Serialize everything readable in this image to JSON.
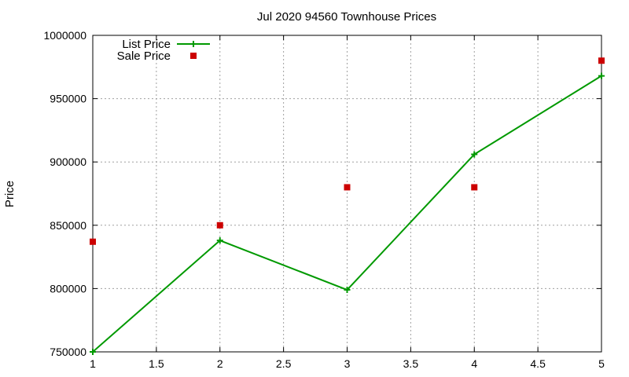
{
  "chart_data": {
    "type": "line",
    "title": "Jul 2020 94560 Townhouse Prices",
    "xlabel": "",
    "ylabel": "Price",
    "xlim": [
      1,
      5
    ],
    "ylim": [
      750000,
      1000000
    ],
    "xticks": [
      1,
      1.5,
      2,
      2.5,
      3,
      3.5,
      4,
      4.5,
      5
    ],
    "yticks": [
      750000,
      800000,
      850000,
      900000,
      950000,
      1000000
    ],
    "grid": true,
    "legend_position": "top-left",
    "series": [
      {
        "name": "List Price",
        "style": "line-with-plus-markers",
        "color": "#009900",
        "x": [
          1,
          2,
          3,
          4,
          5
        ],
        "y": [
          750000,
          838000,
          799000,
          906000,
          968000
        ]
      },
      {
        "name": "Sale Price",
        "style": "square-markers",
        "color": "#cc0000",
        "x": [
          1,
          2,
          3,
          4,
          5
        ],
        "y": [
          837000,
          850000,
          880000,
          880000,
          980000
        ]
      }
    ]
  }
}
